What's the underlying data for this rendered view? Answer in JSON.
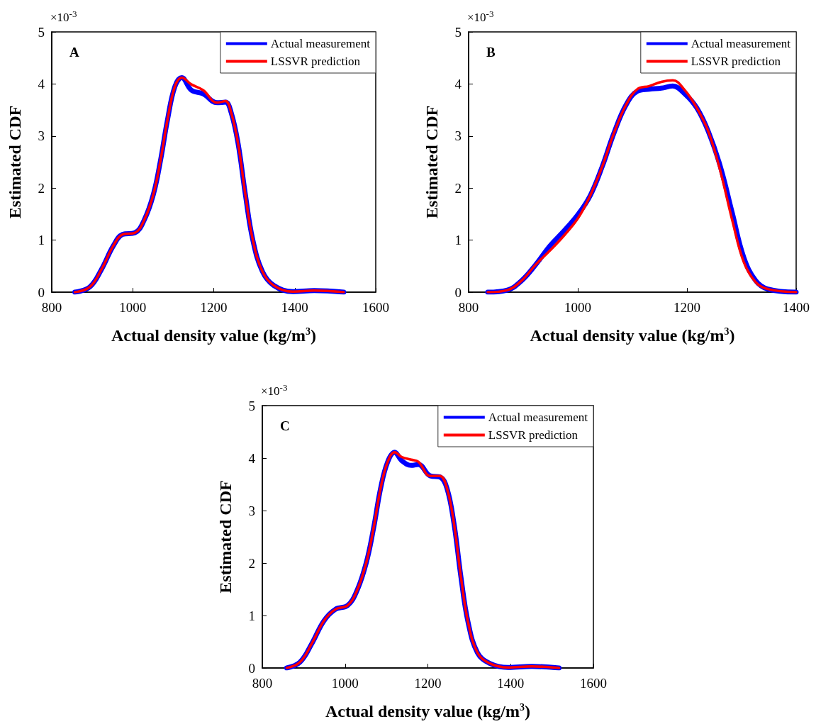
{
  "chart_data": [
    {
      "type": "line",
      "title": "A",
      "xlabel": "Actual density value (kg/m$^{3}$)",
      "ylabel": "Estimated CDF",
      "annotations": [
        "×10$^{-3}$"
      ],
      "xlim": [
        800,
        1600
      ],
      "xticks": [
        800,
        1000,
        1200,
        1400,
        1600
      ],
      "ylim": [
        0,
        5
      ],
      "yticks": [
        0,
        1,
        2,
        3,
        4,
        5
      ],
      "legend": "top right",
      "x": [
        857,
        894,
        923,
        952,
        975,
        1005,
        1028,
        1051,
        1069,
        1086,
        1104,
        1121,
        1145,
        1174,
        1208,
        1229,
        1243,
        1260,
        1278,
        1296,
        1320,
        1348,
        1396,
        1448,
        1521
      ],
      "series": [
        {
          "name": "Actual measurement",
          "color": "#0000ff",
          "values": [
            0,
            0.1,
            0.44,
            0.89,
            1.11,
            1.14,
            1.38,
            1.88,
            2.55,
            3.32,
            3.95,
            4.12,
            3.88,
            3.81,
            3.64,
            3.65,
            3.45,
            2.86,
            1.88,
            1.02,
            0.4,
            0.13,
            0.01,
            0.03,
            0
          ]
        },
        {
          "name": "LSSVR prediction",
          "color": "#ff0000",
          "values": [
            0,
            0.1,
            0.44,
            0.89,
            1.11,
            1.14,
            1.38,
            1.88,
            2.55,
            3.32,
            3.95,
            4.12,
            3.99,
            3.88,
            3.64,
            3.67,
            3.45,
            2.86,
            1.88,
            1.02,
            0.4,
            0.13,
            0.01,
            0.03,
            0
          ]
        }
      ]
    },
    {
      "type": "line",
      "title": "B",
      "xlabel": "Actual density value (kg/m$^{3}$)",
      "ylabel": "Estimated CDF",
      "annotations": [
        "×10$^{-3}$"
      ],
      "xlim": [
        800,
        1400
      ],
      "xticks": [
        800,
        1000,
        1200,
        1400
      ],
      "ylim": [
        0,
        5
      ],
      "yticks": [
        0,
        1,
        2,
        3,
        4,
        5
      ],
      "legend": "top right",
      "x": [
        835,
        871,
        897,
        923,
        949,
        975,
        1001,
        1023,
        1045,
        1066,
        1088,
        1109,
        1131,
        1153,
        1174,
        1196,
        1218,
        1239,
        1261,
        1283,
        1304,
        1326,
        1348,
        1400
      ],
      "series": [
        {
          "name": "Actual measurement",
          "color": "#0000ff",
          "values": [
            0,
            0.04,
            0.22,
            0.53,
            0.89,
            1.18,
            1.5,
            1.86,
            2.42,
            3.05,
            3.59,
            3.86,
            3.9,
            3.92,
            3.96,
            3.81,
            3.54,
            3.09,
            2.42,
            1.52,
            0.67,
            0.22,
            0.06,
            0
          ]
        },
        {
          "name": "LSSVR prediction",
          "color": "#ff0000",
          "values": [
            0,
            0.04,
            0.22,
            0.53,
            0.8,
            1.09,
            1.43,
            1.86,
            2.42,
            3.05,
            3.59,
            3.9,
            3.96,
            4.04,
            4.07,
            3.88,
            3.54,
            3.09,
            2.33,
            1.38,
            0.58,
            0.19,
            0.06,
            0
          ]
        }
      ]
    },
    {
      "type": "line",
      "title": "C",
      "xlabel": "Actual density value (kg/m$^{3}$)",
      "ylabel": "Estimated CDF",
      "annotations": [
        "×10$^{-3}$"
      ],
      "xlim": [
        800,
        1600
      ],
      "xticks": [
        800,
        1000,
        1200,
        1400,
        1600
      ],
      "ylim": [
        0,
        5
      ],
      "yticks": [
        0,
        1,
        2,
        3,
        4,
        5
      ],
      "legend": "top right",
      "x": [
        859,
        891,
        920,
        949,
        977,
        1006,
        1028,
        1051,
        1069,
        1086,
        1103,
        1120,
        1137,
        1160,
        1177,
        1206,
        1229,
        1246,
        1263,
        1280,
        1297,
        1320,
        1349,
        1394,
        1451,
        1517
      ],
      "series": [
        {
          "name": "Actual measurement",
          "color": "#0000ff",
          "values": [
            0,
            0.11,
            0.47,
            0.9,
            1.12,
            1.19,
            1.46,
            2.0,
            2.67,
            3.43,
            3.93,
            4.11,
            3.95,
            3.86,
            3.88,
            3.66,
            3.64,
            3.43,
            2.76,
            1.73,
            0.88,
            0.29,
            0.09,
            0.01,
            0.03,
            0
          ]
        },
        {
          "name": "LSSVR prediction",
          "color": "#ff0000",
          "values": [
            0,
            0.11,
            0.47,
            0.9,
            1.12,
            1.19,
            1.46,
            2.0,
            2.67,
            3.43,
            3.93,
            4.11,
            4.02,
            3.97,
            3.93,
            3.66,
            3.66,
            3.43,
            2.76,
            1.73,
            0.88,
            0.29,
            0.09,
            0.01,
            0.03,
            0
          ]
        }
      ]
    }
  ]
}
